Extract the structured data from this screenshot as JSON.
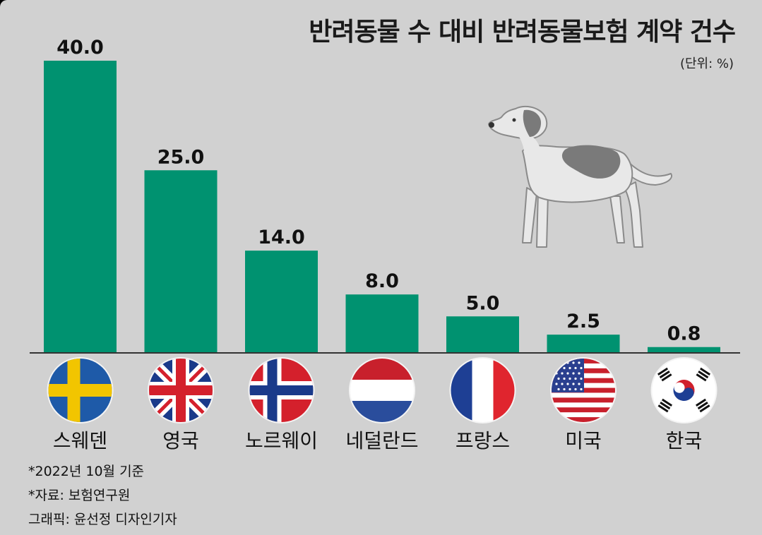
{
  "header": {
    "title": "반려동물 수 대비 반려동물보험 계약 건수",
    "unit": "(단위: %)"
  },
  "footnotes": {
    "date": "*2022년 10월 기준",
    "source": "*자료: 보험연구원",
    "credit": "그래픽: 윤선정 디자인기자"
  },
  "colors": {
    "bar": "#009270",
    "background": "#d1d1d1",
    "axis": "#333333"
  },
  "chart_data": {
    "type": "bar",
    "title": "반려동물 수 대비 반려동물보험 계약 건수",
    "unit": "(단위: %)",
    "categories": [
      "스웨덴",
      "영국",
      "노르웨이",
      "네덜란드",
      "프랑스",
      "미국",
      "한국"
    ],
    "values": [
      40.0,
      25.0,
      14.0,
      8.0,
      5.0,
      2.5,
      0.8
    ],
    "value_labels": [
      "40.0",
      "25.0",
      "14.0",
      "8.0",
      "5.0",
      "2.5",
      "0.8"
    ],
    "flag_icons": [
      "sweden-flag-icon",
      "uk-flag-icon",
      "norway-flag-icon",
      "netherlands-flag-icon",
      "france-flag-icon",
      "usa-flag-icon",
      "korea-flag-icon"
    ],
    "ylim": [
      0,
      40
    ],
    "grid": false,
    "legend": "none"
  },
  "illustration": "dog-icon"
}
